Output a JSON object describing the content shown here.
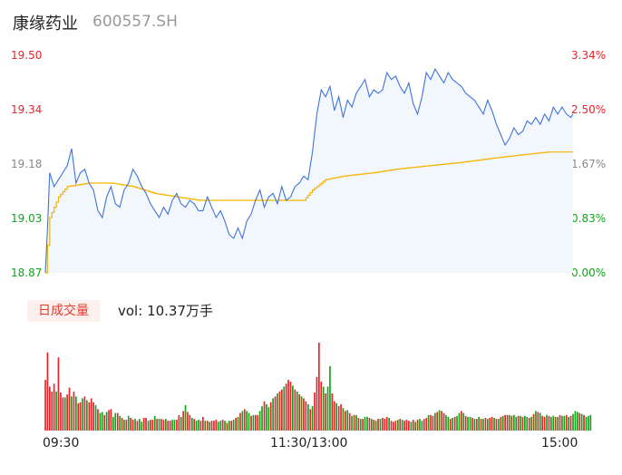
{
  "header": {
    "name": "康缘药业",
    "code": "600557.SH"
  },
  "colors": {
    "up": "#e8232a",
    "down": "#11a31c",
    "price_line": "#3f74d8",
    "avg_line": "#f5b400",
    "area": "#f2f6fd"
  },
  "volume_tab": {
    "label": "日成交量",
    "vol_prefix": "vol:",
    "vol_value": "10.37万手"
  },
  "chart_data": [
    {
      "type": "line",
      "y_ticks_left": [
        "19.50",
        "19.34",
        "19.18",
        "19.03",
        "18.87"
      ],
      "y_ticks_right": [
        "3.34%",
        "2.50%",
        "1.67%",
        "0.83%",
        "0.00%"
      ],
      "x_ticks": [
        "09:30",
        "11:30/13:00",
        "15:00"
      ],
      "ylim": [
        18.87,
        19.5
      ],
      "x_points": 242,
      "price_anchors": [
        [
          0,
          18.87
        ],
        [
          1,
          19.0
        ],
        [
          2,
          19.16
        ],
        [
          4,
          19.12
        ],
        [
          6,
          19.14
        ],
        [
          8,
          19.16
        ],
        [
          10,
          19.18
        ],
        [
          12,
          19.23
        ],
        [
          14,
          19.13
        ],
        [
          16,
          19.16
        ],
        [
          18,
          19.17
        ],
        [
          20,
          19.13
        ],
        [
          22,
          19.11
        ],
        [
          24,
          19.05
        ],
        [
          26,
          19.03
        ],
        [
          28,
          19.09
        ],
        [
          30,
          19.12
        ],
        [
          32,
          19.07
        ],
        [
          34,
          19.06
        ],
        [
          36,
          19.11
        ],
        [
          38,
          19.13
        ],
        [
          40,
          19.17
        ],
        [
          42,
          19.15
        ],
        [
          44,
          19.12
        ],
        [
          46,
          19.1
        ],
        [
          48,
          19.07
        ],
        [
          50,
          19.05
        ],
        [
          52,
          19.03
        ],
        [
          54,
          19.06
        ],
        [
          56,
          19.04
        ],
        [
          58,
          19.08
        ],
        [
          60,
          19.1
        ],
        [
          62,
          19.07
        ],
        [
          64,
          19.06
        ],
        [
          66,
          19.08
        ],
        [
          68,
          19.07
        ],
        [
          70,
          19.05
        ],
        [
          72,
          19.05
        ],
        [
          74,
          19.09
        ],
        [
          76,
          19.06
        ],
        [
          78,
          19.03
        ],
        [
          80,
          19.05
        ],
        [
          82,
          19.02
        ],
        [
          84,
          18.98
        ],
        [
          86,
          18.97
        ],
        [
          88,
          19.0
        ],
        [
          90,
          18.97
        ],
        [
          92,
          19.02
        ],
        [
          94,
          19.04
        ],
        [
          96,
          19.08
        ],
        [
          98,
          19.11
        ],
        [
          100,
          19.06
        ],
        [
          102,
          19.09
        ],
        [
          104,
          19.1
        ],
        [
          106,
          19.07
        ],
        [
          108,
          19.12
        ],
        [
          110,
          19.08
        ],
        [
          112,
          19.09
        ],
        [
          114,
          19.12
        ],
        [
          116,
          19.13
        ],
        [
          118,
          19.15
        ],
        [
          120,
          19.14
        ],
        [
          122,
          19.22
        ],
        [
          124,
          19.33
        ],
        [
          126,
          19.4
        ],
        [
          128,
          19.38
        ],
        [
          130,
          19.41
        ],
        [
          132,
          19.34
        ],
        [
          134,
          19.38
        ],
        [
          136,
          19.32
        ],
        [
          138,
          19.37
        ],
        [
          140,
          19.35
        ],
        [
          142,
          19.39
        ],
        [
          144,
          19.41
        ],
        [
          146,
          19.43
        ],
        [
          148,
          19.38
        ],
        [
          150,
          19.4
        ],
        [
          152,
          19.39
        ],
        [
          154,
          19.4
        ],
        [
          156,
          19.45
        ],
        [
          158,
          19.43
        ],
        [
          160,
          19.44
        ],
        [
          162,
          19.41
        ],
        [
          164,
          19.39
        ],
        [
          166,
          19.42
        ],
        [
          168,
          19.36
        ],
        [
          170,
          19.33
        ],
        [
          172,
          19.38
        ],
        [
          174,
          19.45
        ],
        [
          176,
          19.43
        ],
        [
          178,
          19.46
        ],
        [
          180,
          19.44
        ],
        [
          182,
          19.42
        ],
        [
          184,
          19.45
        ],
        [
          186,
          19.43
        ],
        [
          188,
          19.42
        ],
        [
          190,
          19.41
        ],
        [
          192,
          19.39
        ],
        [
          194,
          19.38
        ],
        [
          196,
          19.37
        ],
        [
          198,
          19.35
        ],
        [
          200,
          19.33
        ],
        [
          202,
          19.37
        ],
        [
          204,
          19.34
        ],
        [
          206,
          19.3
        ],
        [
          208,
          19.27
        ],
        [
          210,
          19.24
        ],
        [
          212,
          19.26
        ],
        [
          214,
          19.29
        ],
        [
          216,
          19.27
        ],
        [
          218,
          19.28
        ],
        [
          220,
          19.31
        ],
        [
          222,
          19.3
        ],
        [
          224,
          19.32
        ],
        [
          226,
          19.3
        ],
        [
          228,
          19.33
        ],
        [
          230,
          19.31
        ],
        [
          232,
          19.35
        ],
        [
          234,
          19.33
        ],
        [
          236,
          19.35
        ],
        [
          238,
          19.33
        ],
        [
          240,
          19.32
        ],
        [
          241,
          19.33
        ]
      ],
      "avg_anchors": [
        [
          0,
          18.87
        ],
        [
          2,
          19.03
        ],
        [
          6,
          19.09
        ],
        [
          10,
          19.12
        ],
        [
          20,
          19.13
        ],
        [
          30,
          19.13
        ],
        [
          40,
          19.12
        ],
        [
          50,
          19.1
        ],
        [
          60,
          19.09
        ],
        [
          70,
          19.08
        ],
        [
          80,
          19.08
        ],
        [
          90,
          19.08
        ],
        [
          100,
          19.08
        ],
        [
          110,
          19.08
        ],
        [
          118,
          19.08
        ],
        [
          122,
          19.11
        ],
        [
          128,
          19.14
        ],
        [
          136,
          19.15
        ],
        [
          150,
          19.16
        ],
        [
          160,
          19.17
        ],
        [
          175,
          19.18
        ],
        [
          190,
          19.19
        ],
        [
          202,
          19.2
        ],
        [
          215,
          19.21
        ],
        [
          230,
          19.22
        ],
        [
          241,
          19.22
        ]
      ]
    },
    {
      "type": "bar",
      "name": "日成交量",
      "x_points": 242,
      "volume_values": [
        52,
        80,
        45,
        40,
        48,
        40,
        75,
        39,
        34,
        34,
        37,
        44,
        35,
        40,
        35,
        28,
        29,
        33,
        35,
        31,
        29,
        33,
        29,
        26,
        22,
        18,
        19,
        16,
        19,
        21,
        22,
        14,
        18,
        18,
        15,
        13,
        11,
        11,
        15,
        13,
        11,
        12,
        10,
        12,
        9,
        13,
        13,
        10,
        11,
        11,
        15,
        12,
        12,
        12,
        11,
        12,
        10,
        10,
        11,
        11,
        11,
        16,
        14,
        20,
        26,
        19,
        16,
        13,
        12,
        10,
        11,
        10,
        14,
        10,
        10,
        9,
        10,
        10,
        11,
        9,
        10,
        11,
        10,
        8,
        10,
        10,
        11,
        13,
        14,
        18,
        20,
        22,
        20,
        18,
        15,
        16,
        16,
        16,
        20,
        25,
        30,
        27,
        24,
        29,
        33,
        35,
        38,
        40,
        42,
        45,
        48,
        52,
        50,
        46,
        42,
        40,
        37,
        35,
        33,
        30,
        27,
        22,
        25,
        39,
        55,
        90,
        50,
        45,
        38,
        45,
        66,
        38,
        30,
        28,
        25,
        27,
        23,
        20,
        21,
        18,
        15,
        16,
        16,
        13,
        12,
        12,
        14,
        14,
        13,
        12,
        11,
        10,
        12,
        12,
        13,
        12,
        14,
        13,
        10,
        9,
        10,
        11,
        12,
        11,
        10,
        11,
        10,
        9,
        11,
        9,
        11,
        12,
        10,
        12,
        13,
        16,
        16,
        15,
        18,
        19,
        21,
        20,
        18,
        16,
        14,
        12,
        13,
        14,
        15,
        18,
        20,
        18,
        15,
        14,
        14,
        13,
        12,
        12,
        14,
        12,
        12,
        13,
        12,
        13,
        14,
        13,
        12,
        12,
        14,
        15,
        16,
        16,
        16,
        15,
        16,
        14,
        15,
        15,
        14,
        15,
        14,
        13,
        14,
        17,
        20,
        19,
        18,
        15,
        14,
        16,
        15,
        14,
        15,
        14,
        14,
        16,
        15,
        15,
        16,
        14,
        15,
        17,
        20,
        19,
        18,
        17,
        16,
        14,
        15,
        16
      ],
      "volume_colors": [
        "r",
        "r",
        "r",
        "r",
        "r",
        "g",
        "r",
        "r",
        "r",
        "g",
        "r",
        "r",
        "g",
        "r",
        "g",
        "r",
        "r",
        "g",
        "r",
        "g",
        "r",
        "r",
        "r",
        "g",
        "r",
        "g",
        "g",
        "r",
        "g",
        "r",
        "r",
        "g",
        "g",
        "r",
        "g",
        "r",
        "g",
        "r",
        "g",
        "r",
        "r",
        "g",
        "r",
        "g",
        "g",
        "r",
        "r",
        "g",
        "r",
        "r",
        "g",
        "r",
        "g",
        "r",
        "r",
        "g",
        "r",
        "r",
        "g",
        "g",
        "r",
        "r",
        "g",
        "r",
        "g",
        "r",
        "r",
        "g",
        "r",
        "g",
        "g",
        "r",
        "r",
        "g",
        "r",
        "g",
        "r",
        "r",
        "r",
        "g",
        "g",
        "r",
        "g",
        "r",
        "g",
        "r",
        "g",
        "r",
        "g",
        "r",
        "g",
        "r",
        "g",
        "g",
        "r",
        "g",
        "r",
        "r",
        "g",
        "g",
        "r",
        "g",
        "g",
        "r",
        "g",
        "r",
        "g",
        "r",
        "r",
        "g",
        "r",
        "r",
        "r",
        "g",
        "r",
        "g",
        "r",
        "g",
        "r",
        "r",
        "g",
        "r",
        "g",
        "r",
        "r",
        "r",
        "r",
        "g",
        "r",
        "g",
        "g",
        "r",
        "r",
        "g",
        "r",
        "r",
        "g",
        "r",
        "g",
        "r",
        "g",
        "r",
        "g",
        "r",
        "g",
        "r",
        "g",
        "g",
        "r",
        "g",
        "r",
        "g",
        "r",
        "g",
        "r",
        "r",
        "r",
        "g",
        "r",
        "r",
        "r",
        "g",
        "r",
        "g",
        "r",
        "r",
        "r",
        "g",
        "r",
        "g",
        "r",
        "g",
        "g",
        "r",
        "r",
        "g",
        "r",
        "r",
        "g",
        "r",
        "g",
        "r",
        "r",
        "g",
        "g",
        "r",
        "g",
        "r",
        "g",
        "g",
        "r",
        "g",
        "r",
        "g",
        "g",
        "r",
        "g",
        "r",
        "g",
        "r",
        "g",
        "r",
        "g",
        "r",
        "r",
        "g",
        "r",
        "g",
        "r",
        "g",
        "r",
        "r",
        "g",
        "r",
        "g",
        "g",
        "r",
        "g",
        "r",
        "g",
        "g",
        "r",
        "g",
        "r",
        "g",
        "r",
        "g",
        "r",
        "r",
        "g",
        "r",
        "g",
        "g",
        "r",
        "g",
        "r",
        "g",
        "g",
        "r",
        "g",
        "r",
        "g",
        "g",
        "g",
        "r",
        "g",
        "r",
        "g"
      ]
    }
  ]
}
